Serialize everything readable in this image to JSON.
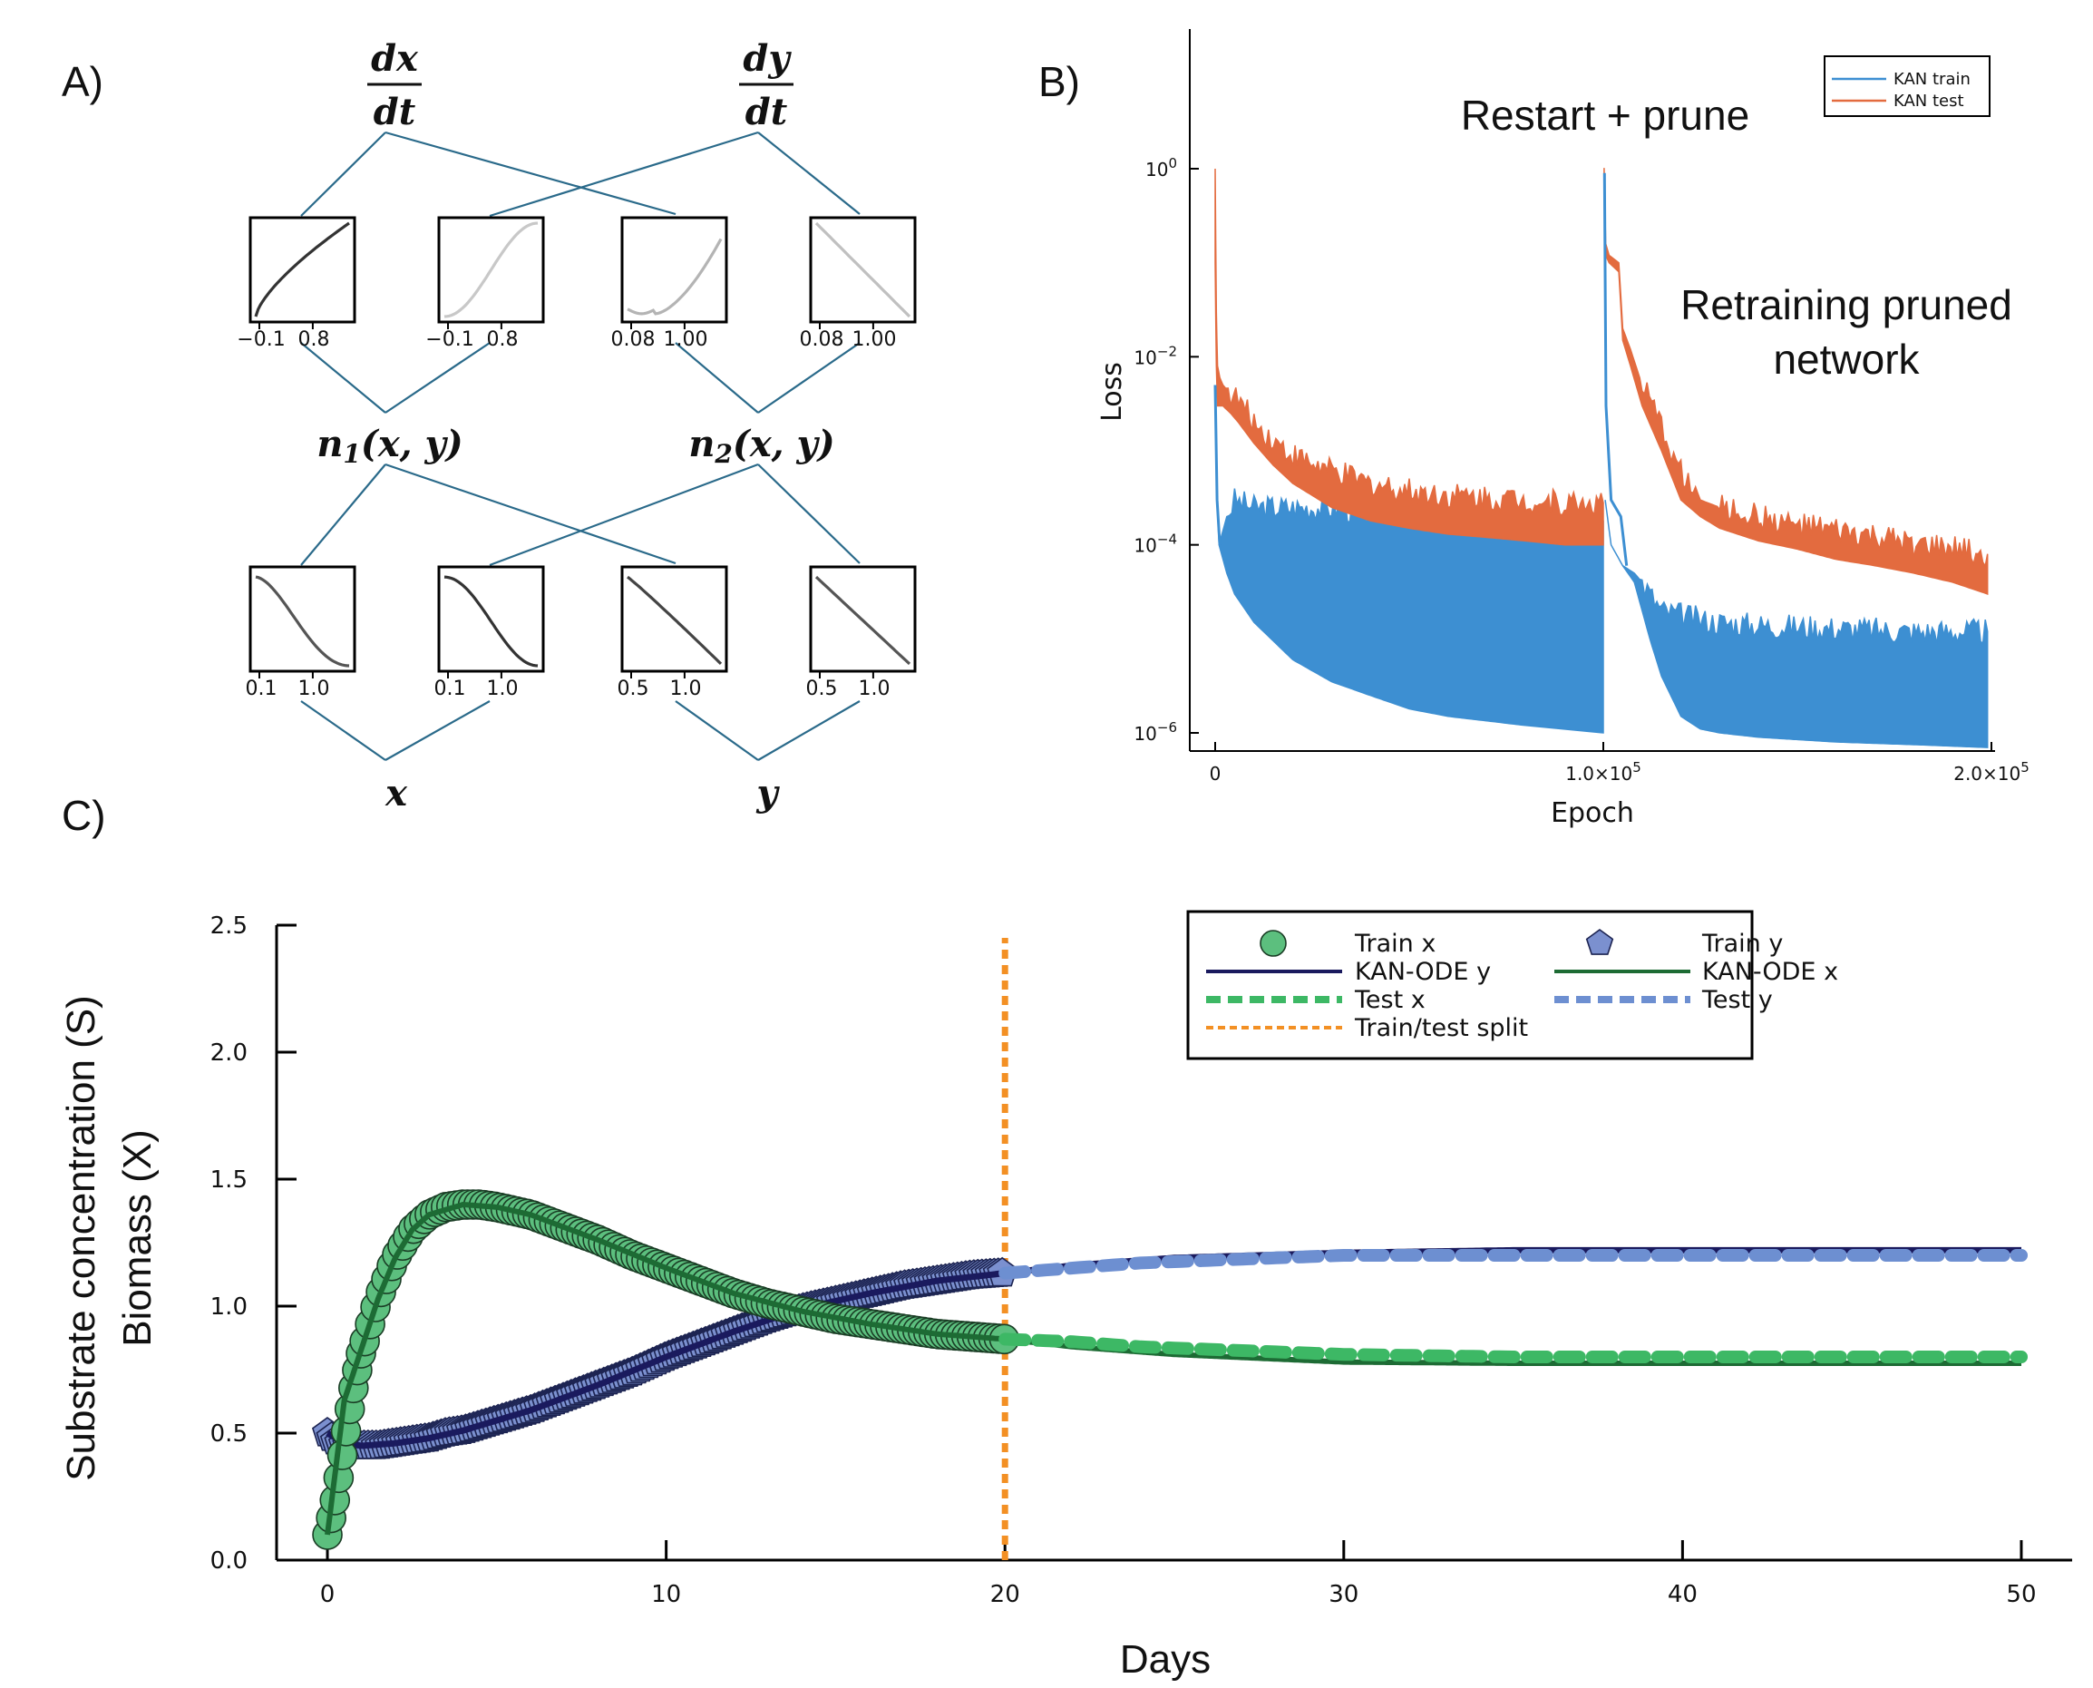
{
  "panels": {
    "a": "A)",
    "b": "B)",
    "c": "C)"
  },
  "network": {
    "outputs": [
      {
        "num": "dx",
        "den": "dt"
      },
      {
        "num": "dy",
        "den": "dt"
      }
    ],
    "hidden": [
      {
        "base": "n",
        "sub": "1",
        "args": "(x, y)"
      },
      {
        "base": "n",
        "sub": "2",
        "args": "(x, y)"
      }
    ],
    "inputs": [
      "x",
      "y"
    ],
    "top_boxes": [
      {
        "ticks": [
          "−0.1",
          "0.8"
        ],
        "shade": "#333333"
      },
      {
        "ticks": [
          "−0.1",
          "0.8"
        ],
        "shade": "#c8c8c8"
      },
      {
        "ticks": [
          "0.08",
          "1.00"
        ],
        "shade": "#b4b4b4"
      },
      {
        "ticks": [
          "0.08",
          "1.00"
        ],
        "shade": "#c0c0c0"
      }
    ],
    "bottom_boxes": [
      {
        "ticks": [
          "0.1",
          "1.0"
        ],
        "shade": "#555555"
      },
      {
        "ticks": [
          "0.1",
          "1.0"
        ],
        "shade": "#333333"
      },
      {
        "ticks": [
          "0.5",
          "1.0"
        ],
        "shade": "#444444"
      },
      {
        "ticks": [
          "0.5",
          "1.0"
        ],
        "shade": "#555555"
      }
    ],
    "edge_color": "#2a6a8a"
  },
  "chart_data": [
    {
      "type": "line",
      "panel": "B",
      "xlabel": "Epoch",
      "ylabel": "Loss",
      "yscale": "log",
      "xlim": [
        0,
        200000
      ],
      "ylim": [
        1e-06,
        1
      ],
      "x_ticks": [
        {
          "value": 0,
          "label": "0",
          "exp": ""
        },
        {
          "value": 100000,
          "label": "1.0×10",
          "exp": "5"
        },
        {
          "value": 200000,
          "label": "2.0×10",
          "exp": "5"
        }
      ],
      "y_ticks": [
        {
          "value": 1,
          "exp": "0"
        },
        {
          "value": 0.01,
          "exp": "−2"
        },
        {
          "value": 0.0001,
          "exp": "−4"
        },
        {
          "value": 1e-06,
          "exp": "−6"
        }
      ],
      "legend_position": "top-right",
      "annotations": [
        "Restart + prune",
        "Retraining pruned",
        "network"
      ],
      "series": [
        {
          "name": "KAN train",
          "color": "#3d8fd2",
          "x": [
            0,
            500,
            1000,
            3000,
            5000,
            10000,
            20000,
            30000,
            40000,
            50000,
            60000,
            80000,
            100000,
            100500,
            102000,
            105000,
            108000,
            110000,
            112000,
            115000,
            120000,
            125000,
            130000,
            140000,
            160000,
            180000,
            199000
          ],
          "low": [
            0.003,
            0.0003,
            0.0001,
            5e-05,
            3e-05,
            1.5e-05,
            6e-06,
            3.5e-06,
            2.5e-06,
            1.8e-06,
            1.5e-06,
            1.2e-06,
            1e-06,
            0.0003,
            0.0001,
            6e-05,
            4e-05,
            2e-05,
            1e-05,
            4e-06,
            1.5e-06,
            1.1e-06,
            1e-06,
            9e-07,
            8e-07,
            7.5e-07,
            7e-07
          ],
          "high": [
            0.005,
            0.0003,
            0.0001,
            0.0002,
            0.0003,
            0.00025,
            0.00025,
            0.00025,
            0.00022,
            0.0002,
            0.0002,
            0.0002,
            0.00018,
            0.0003,
            0.0001,
            6e-05,
            5e-05,
            4e-05,
            3e-05,
            2e-05,
            1.8e-05,
            1.6e-05,
            1.5e-05,
            1.4e-05,
            1.3e-05,
            1.2e-05,
            1.2e-05
          ]
        },
        {
          "name": "KAN test",
          "color": "#e36b3f",
          "x": [
            0,
            300,
            600,
            1200,
            2000,
            4000,
            6000,
            10000,
            15000,
            20000,
            30000,
            40000,
            50000,
            60000,
            70000,
            80000,
            90000,
            100000,
            100200,
            100600,
            101500,
            104000,
            105000,
            107000,
            110000,
            115000,
            120000,
            125000,
            130000,
            140000,
            150000,
            160000,
            170000,
            180000,
            190000,
            199000
          ],
          "low": [
            0.1,
            0.008,
            0.003,
            0.003,
            0.003,
            0.0025,
            0.002,
            0.0012,
            0.0007,
            0.00045,
            0.00025,
            0.00018,
            0.00015,
            0.00013,
            0.00012,
            0.00011,
            0.0001,
            0.0001,
            0.5,
            0.12,
            0.1,
            0.08,
            0.015,
            0.008,
            0.003,
            0.001,
            0.0003,
            0.0002,
            0.00015,
            0.00011,
            9e-05,
            7e-05,
            6e-05,
            5e-05,
            4e-05,
            3e-05
          ],
          "high": [
            1.0,
            0.03,
            0.008,
            0.006,
            0.005,
            0.004,
            0.0035,
            0.002,
            0.0013,
            0.0009,
            0.0006,
            0.00045,
            0.00038,
            0.00034,
            0.00032,
            0.0003,
            0.00028,
            0.00028,
            1.0,
            0.16,
            0.12,
            0.1,
            0.02,
            0.012,
            0.005,
            0.0018,
            0.0006,
            0.0003,
            0.00025,
            0.0002,
            0.00016,
            0.00014,
            0.00012,
            0.0001,
            9e-05,
            8e-05
          ]
        }
      ]
    },
    {
      "type": "line",
      "panel": "C",
      "xlabel": "Days",
      "ylabel_lines": [
        "Substrate concentration (S)",
        "Biomass (X)"
      ],
      "xlim": [
        -1.5,
        51.5
      ],
      "ylim": [
        0,
        2.5
      ],
      "x_ticks": [
        0,
        10,
        20,
        30,
        40,
        50
      ],
      "y_ticks": [
        "0.0",
        "0.5",
        "1.0",
        "1.5",
        "2.0",
        "2.5"
      ],
      "legend_position": "top-right",
      "train_test_split": 20,
      "series": [
        {
          "name": "Train x",
          "color": "#5cbf7e",
          "x": [
            0,
            0.2,
            0.4,
            0.6,
            0.8,
            1,
            1.5,
            2,
            2.5,
            3,
            3.5,
            4,
            4.5,
            5,
            6,
            7,
            8,
            9,
            10,
            11,
            12,
            13,
            14,
            15,
            16,
            17,
            18,
            19,
            20
          ],
          "values": [
            0.1,
            0.22,
            0.38,
            0.55,
            0.7,
            0.82,
            1.03,
            1.19,
            1.3,
            1.36,
            1.39,
            1.4,
            1.4,
            1.39,
            1.36,
            1.31,
            1.26,
            1.2,
            1.15,
            1.1,
            1.05,
            1.01,
            0.98,
            0.95,
            0.93,
            0.91,
            0.89,
            0.88,
            0.87
          ]
        },
        {
          "name": "Train y",
          "color": "#7b90cf",
          "x": [
            0,
            0.2,
            0.4,
            0.6,
            0.8,
            1,
            1.5,
            2,
            2.5,
            3,
            3.5,
            4,
            4.5,
            5,
            6,
            7,
            8,
            9,
            10,
            11,
            12,
            13,
            14,
            15,
            16,
            17,
            18,
            19,
            20
          ],
          "values": [
            0.5,
            0.47,
            0.46,
            0.45,
            0.45,
            0.45,
            0.45,
            0.46,
            0.47,
            0.48,
            0.5,
            0.51,
            0.53,
            0.55,
            0.59,
            0.64,
            0.69,
            0.74,
            0.8,
            0.85,
            0.9,
            0.95,
            0.99,
            1.02,
            1.05,
            1.08,
            1.1,
            1.12,
            1.13
          ]
        },
        {
          "name": "KAN-ODE y",
          "color": "#1a1a5e",
          "x": [
            0,
            0.5,
            1,
            2,
            3,
            4,
            5,
            6,
            8,
            10,
            12,
            14,
            16,
            18,
            20,
            22,
            25,
            30,
            35,
            40,
            45,
            50
          ],
          "values": [
            0.5,
            0.46,
            0.45,
            0.46,
            0.48,
            0.51,
            0.55,
            0.59,
            0.69,
            0.8,
            0.9,
            0.99,
            1.05,
            1.1,
            1.13,
            1.16,
            1.19,
            1.21,
            1.22,
            1.22,
            1.22,
            1.22
          ]
        },
        {
          "name": "KAN-ODE x",
          "color": "#1d6b34",
          "x": [
            0,
            0.5,
            1,
            1.5,
            2,
            2.5,
            3,
            4,
            5,
            6,
            8,
            10,
            12,
            14,
            16,
            18,
            20,
            22,
            25,
            30,
            35,
            40,
            45,
            50
          ],
          "values": [
            0.1,
            0.63,
            0.83,
            1.03,
            1.19,
            1.3,
            1.36,
            1.4,
            1.39,
            1.36,
            1.26,
            1.15,
            1.05,
            0.98,
            0.93,
            0.89,
            0.87,
            0.84,
            0.81,
            0.78,
            0.775,
            0.775,
            0.775,
            0.775
          ]
        },
        {
          "name": "Test x",
          "color": "#3db865",
          "x": [
            20,
            22,
            24,
            26,
            28,
            30,
            35,
            40,
            45,
            50
          ],
          "values": [
            0.87,
            0.86,
            0.84,
            0.83,
            0.82,
            0.81,
            0.8,
            0.8,
            0.8,
            0.8
          ]
        },
        {
          "name": "Test y",
          "color": "#6d8fd1",
          "x": [
            20,
            22,
            24,
            26,
            28,
            30,
            35,
            40,
            45,
            50
          ],
          "values": [
            1.13,
            1.15,
            1.17,
            1.18,
            1.19,
            1.2,
            1.2,
            1.2,
            1.2,
            1.2
          ]
        },
        {
          "name": "Train/test split",
          "color": "#f39024",
          "x": [
            20,
            20
          ],
          "values": [
            0,
            2.45
          ]
        }
      ]
    }
  ]
}
